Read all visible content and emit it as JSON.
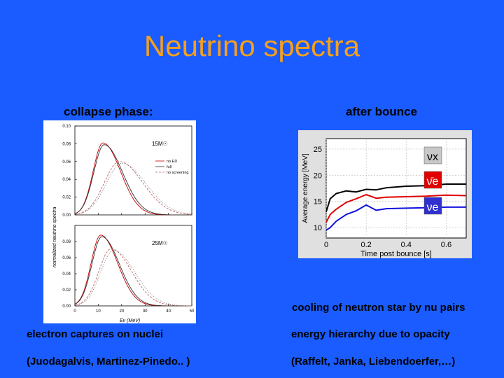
{
  "slide": {
    "title": "Neutrino spectra",
    "left_heading": "collapse phase:",
    "right_heading": "after bounce",
    "right_caption_top": "cooling of neutron star by nu pairs",
    "left_caption_1": "electron captures on nuclei",
    "left_caption_2": "(Juodagalvis, Martinez-Pinedo.. )",
    "right_caption_1": "energy hierarchy due to opacity",
    "right_caption_2": "(Raffelt, Janka, Liebendoerfer,…)",
    "bg_color": "#1a5cff",
    "title_color": "#f6a01a"
  },
  "chart_data": [
    {
      "type": "line",
      "panel": "left",
      "ylabel": "normalized neutrino spectra",
      "xlabel": "Eν (MeV)",
      "xlim": [
        0,
        50
      ],
      "x_ticks": [
        "0",
        "10",
        "20",
        "30",
        "40",
        "50"
      ],
      "subplots": [
        {
          "tag": "15M☉",
          "ylim": [
            0,
            0.1
          ],
          "y_ticks": [
            "0.00",
            "0.02",
            "0.04",
            "0.06",
            "0.08",
            "0.10"
          ],
          "legend": [
            "no ED",
            "full",
            "no screening"
          ],
          "series": [
            {
              "peak_x": 12,
              "peak_y": 0.081,
              "width": 6,
              "tail": 0.7
            },
            {
              "peak_x": 12.5,
              "peak_y": 0.079,
              "width": 6.3,
              "tail": 0.7
            },
            {
              "peak_x": 19,
              "peak_y": 0.06,
              "width": 8,
              "tail": 0.8
            },
            {
              "peak_x": 20,
              "peak_y": 0.058,
              "width": 8.3,
              "tail": 0.8
            }
          ]
        },
        {
          "tag": "25M☉",
          "ylim": [
            0,
            0.1
          ],
          "y_ticks": [
            "0.00",
            "0.02",
            "0.04",
            "0.06",
            "0.08"
          ],
          "series": [
            {
              "peak_x": 11,
              "peak_y": 0.088,
              "width": 5.8,
              "tail": 0.7
            },
            {
              "peak_x": 11.5,
              "peak_y": 0.086,
              "width": 6,
              "tail": 0.7
            },
            {
              "peak_x": 15.5,
              "peak_y": 0.071,
              "width": 7,
              "tail": 0.75
            },
            {
              "peak_x": 16.5,
              "peak_y": 0.069,
              "width": 7.3,
              "tail": 0.75
            }
          ]
        }
      ]
    },
    {
      "type": "line",
      "panel": "right",
      "xlabel": "Time post bounce [s]",
      "ylabel": "Average energy [MeV]",
      "xlim": [
        0,
        0.7
      ],
      "ylim": [
        8,
        27
      ],
      "x_ticks": [
        "0",
        "0.2",
        "0.4",
        "0.6"
      ],
      "y_ticks": [
        "10",
        "15",
        "20",
        "25"
      ],
      "series": [
        {
          "name": "νx",
          "color": "#000000",
          "label_bg": "#c8c8c8",
          "label_color": "#000000",
          "x": [
            0,
            0.02,
            0.05,
            0.1,
            0.15,
            0.2,
            0.25,
            0.3,
            0.4,
            0.5,
            0.6,
            0.7
          ],
          "y": [
            13,
            15.5,
            16.5,
            17,
            16.8,
            17.3,
            17.2,
            17.6,
            17.9,
            18,
            18.3,
            18.3
          ]
        },
        {
          "name": "ν̄e",
          "color": "#e00000",
          "label_bg": "#e00000",
          "label_color": "#ffffff",
          "x": [
            0,
            0.02,
            0.05,
            0.1,
            0.15,
            0.2,
            0.25,
            0.3,
            0.4,
            0.5,
            0.6,
            0.7
          ],
          "y": [
            11,
            12.5,
            13.5,
            14.8,
            15.5,
            16.3,
            15.6,
            15.8,
            15.9,
            16,
            16.2,
            16.1
          ]
        },
        {
          "name": "νe",
          "color": "#1010e0",
          "label_bg": "#3030d0",
          "label_color": "#ffffff",
          "x": [
            0,
            0.02,
            0.05,
            0.1,
            0.15,
            0.2,
            0.25,
            0.3,
            0.4,
            0.5,
            0.6,
            0.7
          ],
          "y": [
            9.5,
            10,
            11.2,
            12.5,
            13.2,
            14.3,
            13.3,
            13.6,
            13.7,
            13.8,
            13.9,
            13.9
          ]
        }
      ]
    }
  ]
}
